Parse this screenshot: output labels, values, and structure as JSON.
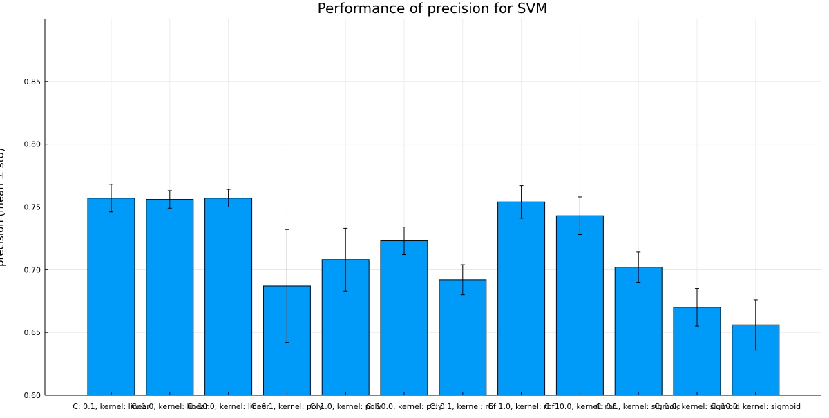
{
  "chart_data": {
    "type": "bar",
    "title": "Performance of precision for SVM",
    "xlabel": "",
    "ylabel": "precision (mean ± std)",
    "ylim": [
      0.6,
      0.9
    ],
    "yticks": [
      0.6,
      0.65,
      0.7,
      0.75,
      0.8,
      0.85
    ],
    "ytick_labels": [
      "0.60",
      "0.65",
      "0.70",
      "0.75",
      "0.80",
      "0.85"
    ],
    "grid": true,
    "legend": "none",
    "bar_color": "#009af9",
    "categories": [
      "C: 0.1, kernel: linear",
      "C: 1.0, kernel: linear",
      "C: 10.0, kernel: linear",
      "C: 0.1, kernel: poly",
      "C: 1.0, kernel: poly",
      "C: 10.0, kernel: poly",
      "C: 0.1, kernel: rbf",
      "C: 1.0, kernel: rbf",
      "C: 10.0, kernel: rbf",
      "C: 0.1, kernel: sigmoid",
      "C: 1.0, kernel: sigmoid",
      "C: 10.0, kernel: sigmoid"
    ],
    "values": [
      0.757,
      0.756,
      0.757,
      0.687,
      0.708,
      0.723,
      0.692,
      0.754,
      0.743,
      0.702,
      0.67,
      0.656
    ],
    "errors": [
      0.011,
      0.007,
      0.007,
      0.045,
      0.025,
      0.011,
      0.012,
      0.013,
      0.015,
      0.012,
      0.015,
      0.02
    ]
  }
}
